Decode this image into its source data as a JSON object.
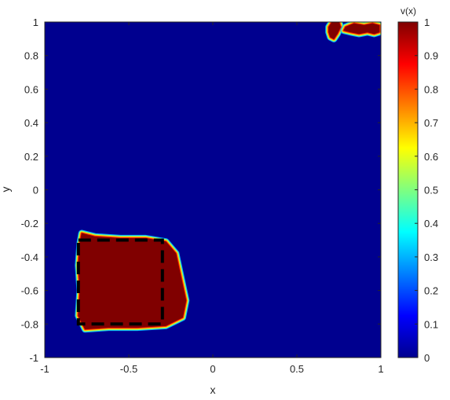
{
  "chart_data": {
    "type": "heatmap",
    "xlabel": "x",
    "ylabel": "y",
    "xlim": [
      -1,
      1
    ],
    "ylim": [
      -1,
      1
    ],
    "xticks": [
      -1,
      -0.5,
      0,
      0.5,
      1
    ],
    "xtick_labels": [
      "-1",
      "-0.5",
      "0",
      "0.5",
      "1"
    ],
    "yticks": [
      -1,
      -0.8,
      -0.6,
      -0.4,
      -0.2,
      0,
      0.2,
      0.4,
      0.6,
      0.8,
      1
    ],
    "ytick_labels": [
      "-1",
      "-0.8",
      "-0.6",
      "-0.4",
      "-0.2",
      "0",
      "0.2",
      "0.4",
      "0.6",
      "0.8",
      "1"
    ],
    "colorbar": {
      "title": "v(x)",
      "colormap": "jet",
      "range": [
        0,
        1
      ],
      "ticks": [
        0,
        0.1,
        0.2,
        0.3,
        0.4,
        0.5,
        0.6,
        0.7,
        0.8,
        0.9,
        1
      ],
      "tick_labels": [
        "0",
        "0.1",
        "0.2",
        "0.3",
        "0.4",
        "0.5",
        "0.6",
        "0.7",
        "0.8",
        "0.9",
        "1"
      ]
    },
    "background_value": 0,
    "regions": [
      {
        "name": "lower-left-blob",
        "value": 1,
        "boundary": [
          [
            -0.78,
            -0.26
          ],
          [
            -0.7,
            -0.28
          ],
          [
            -0.55,
            -0.29
          ],
          [
            -0.4,
            -0.29
          ],
          [
            -0.28,
            -0.31
          ],
          [
            -0.22,
            -0.38
          ],
          [
            -0.19,
            -0.52
          ],
          [
            -0.16,
            -0.66
          ],
          [
            -0.18,
            -0.76
          ],
          [
            -0.28,
            -0.81
          ],
          [
            -0.45,
            -0.82
          ],
          [
            -0.62,
            -0.82
          ],
          [
            -0.76,
            -0.83
          ],
          [
            -0.8,
            -0.75
          ],
          [
            -0.79,
            -0.6
          ],
          [
            -0.8,
            -0.45
          ],
          [
            -0.79,
            -0.32
          ]
        ]
      },
      {
        "name": "top-right-blob-left",
        "value": 1,
        "boundary": [
          [
            0.69,
            0.97
          ],
          [
            0.71,
            1.0
          ],
          [
            0.75,
            1.0
          ],
          [
            0.76,
            0.97
          ],
          [
            0.74,
            0.93
          ],
          [
            0.72,
            0.9
          ],
          [
            0.7,
            0.91
          ],
          [
            0.69,
            0.94
          ]
        ]
      },
      {
        "name": "top-right-blob-right",
        "value": 1,
        "boundary": [
          [
            0.79,
            0.97
          ],
          [
            0.84,
            0.99
          ],
          [
            0.9,
            0.98
          ],
          [
            0.95,
            0.99
          ],
          [
            0.99,
            0.98
          ],
          [
            0.99,
            0.94
          ],
          [
            0.96,
            0.93
          ],
          [
            0.92,
            0.94
          ],
          [
            0.87,
            0.93
          ],
          [
            0.82,
            0.94
          ],
          [
            0.78,
            0.95
          ]
        ]
      }
    ],
    "annotations": [
      {
        "type": "dashed-rectangle",
        "color": "#000000",
        "x_range": [
          -0.8,
          -0.3
        ],
        "y_range": [
          -0.8,
          -0.3
        ]
      }
    ]
  }
}
